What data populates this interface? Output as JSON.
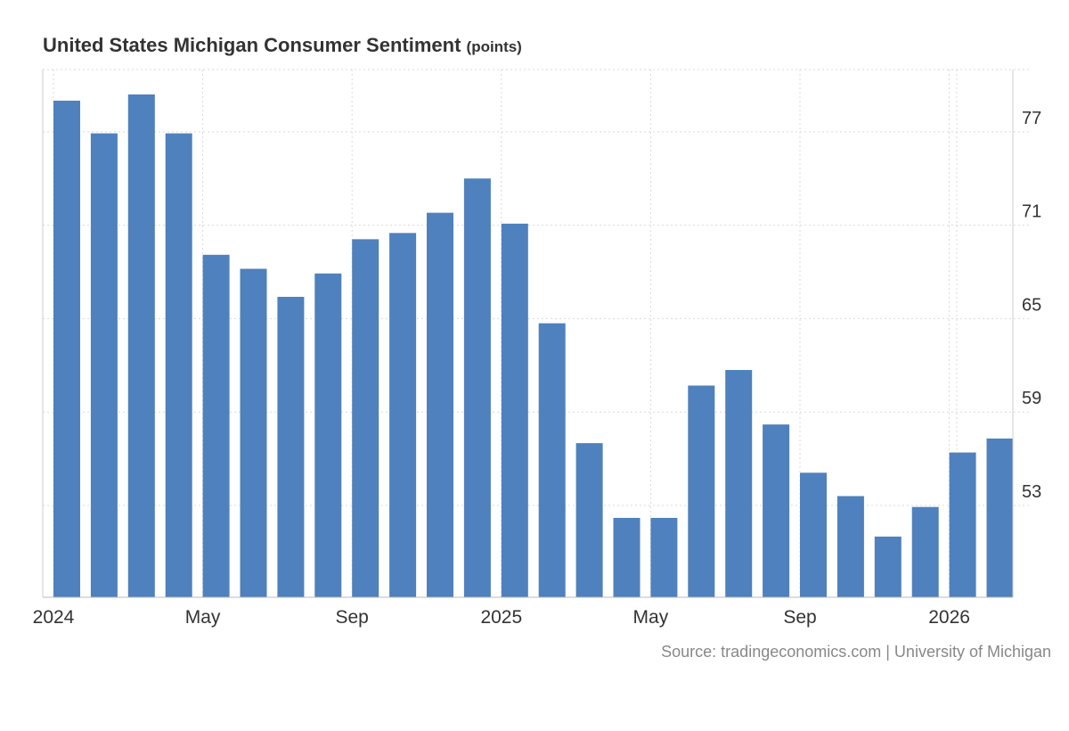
{
  "title": "United States Michigan Consumer Sentiment",
  "unit": "(points)",
  "source": "Source: tradingeconomics.com | University of Michigan",
  "colors": {
    "bar": "#4e81bd",
    "grid": "#d9d9d9",
    "axis_text": "#333333",
    "source_text": "#888888"
  },
  "chart_data": {
    "type": "bar",
    "title": "United States Michigan Consumer Sentiment",
    "ylabel": "points",
    "xlabel": "",
    "categories": [
      "Jan 2024",
      "Feb 2024",
      "Mar 2024",
      "Apr 2024",
      "May 2024",
      "Jun 2024",
      "Jul 2024",
      "Aug 2024",
      "Sep 2024",
      "Oct 2024",
      "Nov 2024",
      "Dec 2024",
      "Jan 2025",
      "Feb 2025",
      "Mar 2025",
      "Apr 2025",
      "May 2025",
      "Jun 2025",
      "Jul 2025",
      "Aug 2025",
      "Sep 2025",
      "Oct 2025",
      "Nov 2025",
      "Dec 2025",
      "Jan 2026",
      "Feb 2026"
    ],
    "values": [
      79.0,
      76.9,
      79.4,
      76.9,
      69.1,
      68.2,
      66.4,
      67.9,
      70.1,
      70.5,
      71.8,
      74.0,
      71.1,
      64.7,
      57.0,
      52.2,
      52.2,
      60.7,
      61.7,
      58.2,
      55.1,
      53.6,
      51.0,
      52.9,
      56.4,
      57.3
    ],
    "ylim": [
      47.1,
      81.0
    ],
    "yticks": [
      53,
      59,
      65,
      71,
      77
    ],
    "xticks": [
      {
        "index": 0,
        "label": "2024"
      },
      {
        "index": 4,
        "label": "May"
      },
      {
        "index": 8,
        "label": "Sep"
      },
      {
        "index": 12,
        "label": "2025"
      },
      {
        "index": 16,
        "label": "May"
      },
      {
        "index": 20,
        "label": "Sep"
      },
      {
        "index": 24,
        "label": "2026"
      }
    ],
    "grid": true,
    "y_axis_side": "right"
  }
}
